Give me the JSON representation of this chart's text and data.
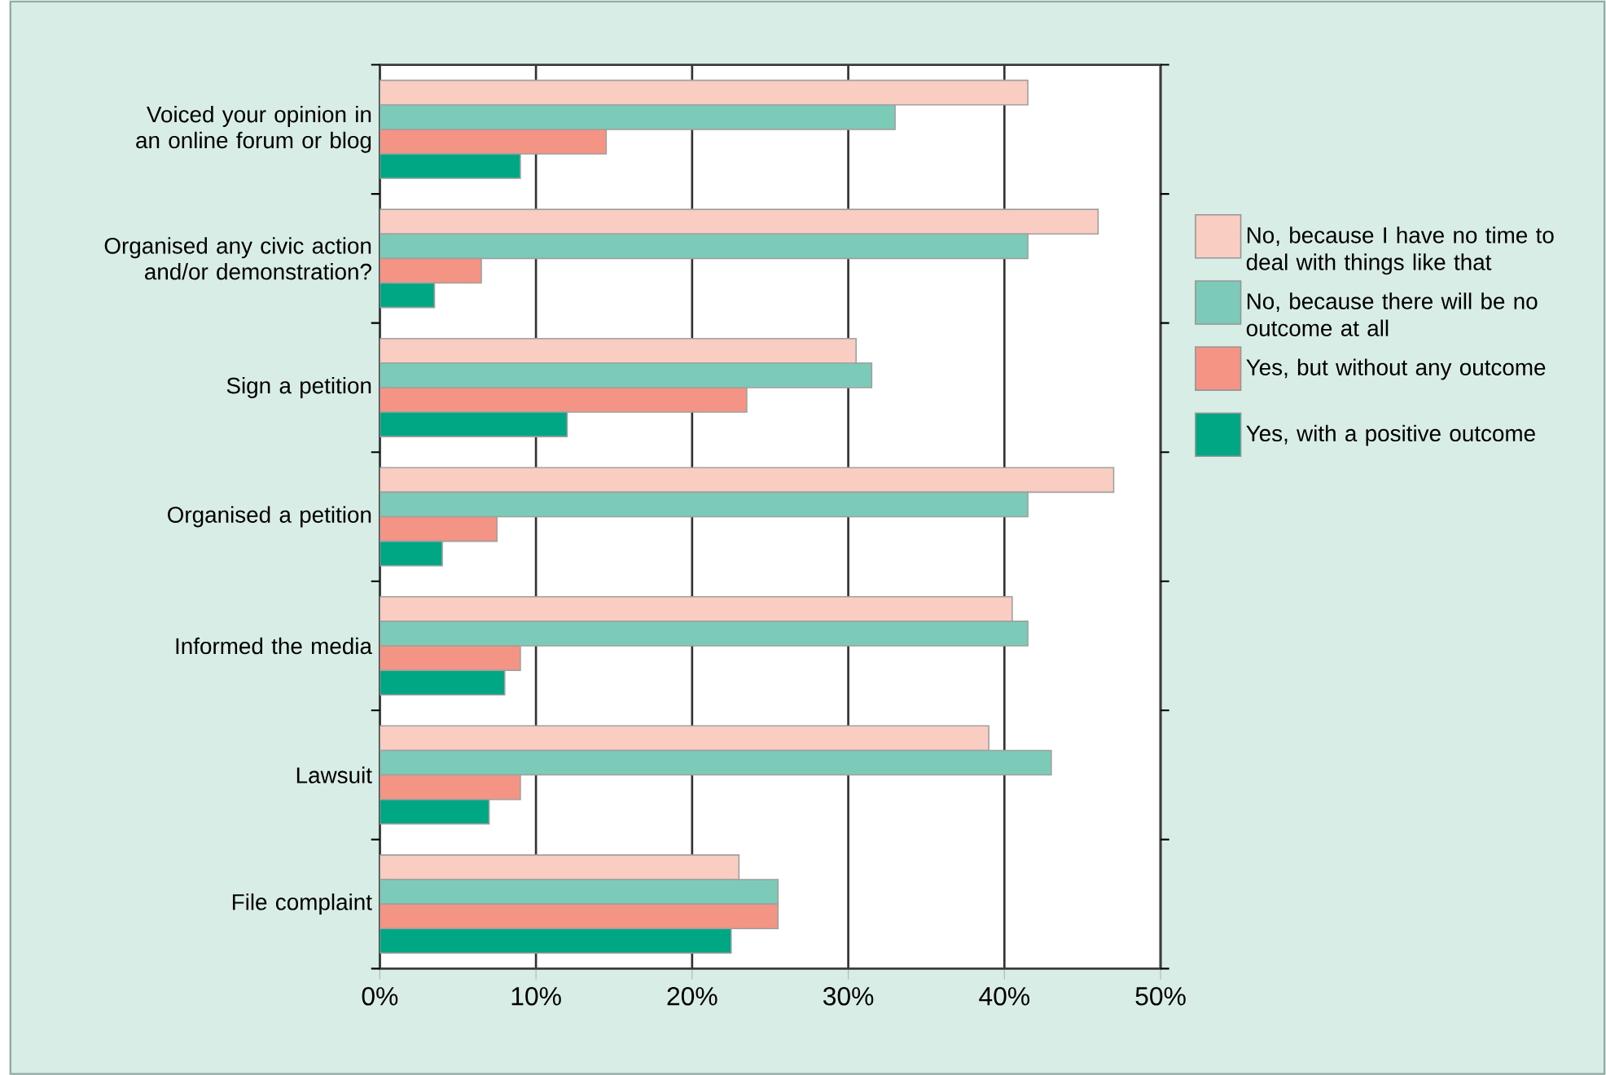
{
  "chart_data": {
    "type": "bar",
    "orientation": "horizontal",
    "categories": [
      "Voiced your opinion in an online forum or blog",
      "Organised any civic action and/or demonstration?",
      "Sign a petition",
      "Organised a petition",
      "Informed the media",
      "Lawsuit",
      "File complaint"
    ],
    "series": [
      {
        "name": "No, because I have no time to deal with things like that",
        "color": "#f9cdc1",
        "values": [
          41.5,
          46,
          30.5,
          47,
          40.5,
          39,
          23
        ]
      },
      {
        "name": "No, because there will be no outcome at all",
        "color": "#7ccab8",
        "values": [
          33,
          41.5,
          31.5,
          41.5,
          41.5,
          43,
          25.5
        ]
      },
      {
        "name": "Yes, but without any outcome",
        "color": "#f39485",
        "values": [
          14.5,
          6.5,
          23.5,
          7.5,
          9,
          9,
          25.5
        ]
      },
      {
        "name": "Yes, with a positive outcome",
        "color": "#00a785",
        "values": [
          9,
          3.5,
          12,
          4,
          8,
          7,
          22.5
        ]
      }
    ],
    "xlim": [
      0,
      50
    ],
    "xticks": [
      {
        "value": 0,
        "label": "0%"
      },
      {
        "value": 10,
        "label": "10%"
      },
      {
        "value": 20,
        "label": "20%"
      },
      {
        "value": 30,
        "label": "30%"
      },
      {
        "value": 40,
        "label": "40%"
      },
      {
        "value": 50,
        "label": "50%"
      }
    ],
    "grid": "x",
    "legend": "right"
  }
}
